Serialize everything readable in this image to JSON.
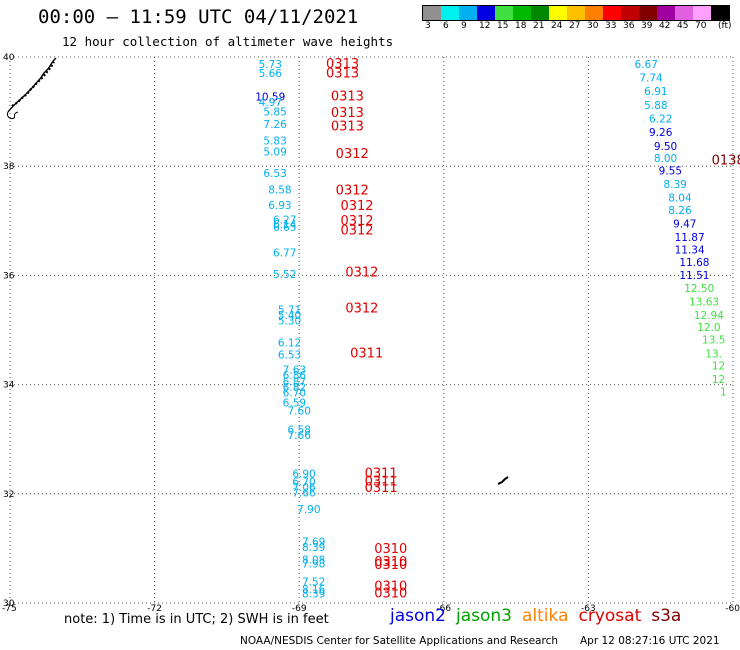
{
  "header": {
    "title": "00:00 – 11:59 UTC 04/11/2021",
    "subtitle": "12 hour collection of altimeter wave heights"
  },
  "color_scale": {
    "unit": "(ft)",
    "bins": [
      {
        "label": "3",
        "color": "#909090"
      },
      {
        "label": "6",
        "color": "#00f0f0"
      },
      {
        "label": "9",
        "color": "#00b0f0"
      },
      {
        "label": "12",
        "color": "#0000e0"
      },
      {
        "label": "15",
        "color": "#40e040"
      },
      {
        "label": "18",
        "color": "#00b800"
      },
      {
        "label": "21",
        "color": "#008800"
      },
      {
        "label": "24",
        "color": "#ffff00"
      },
      {
        "label": "27",
        "color": "#ffc000"
      },
      {
        "label": "30",
        "color": "#ff8000"
      },
      {
        "label": "33",
        "color": "#ff0000"
      },
      {
        "label": "36",
        "color": "#c00000"
      },
      {
        "label": "39",
        "color": "#800000"
      },
      {
        "label": "42",
        "color": "#a000a0"
      },
      {
        "label": "45",
        "color": "#e060e0"
      },
      {
        "label": "70",
        "color": "#ffa0ff"
      },
      {
        "label": "",
        "color": "#000000"
      }
    ]
  },
  "axes": {
    "lon": [
      {
        "value": -75,
        "label": "-75"
      },
      {
        "value": -72,
        "label": "-72"
      },
      {
        "value": -69,
        "label": "-69"
      },
      {
        "value": -66,
        "label": "-66"
      },
      {
        "value": -63,
        "label": "-63"
      },
      {
        "value": -60,
        "label": "-60"
      }
    ],
    "lat": [
      {
        "value": 40,
        "label": "40"
      },
      {
        "value": 38,
        "label": "38"
      },
      {
        "value": 36,
        "label": "36"
      },
      {
        "value": 34,
        "label": "34"
      },
      {
        "value": 32,
        "label": "32"
      },
      {
        "value": 30,
        "label": "30"
      }
    ],
    "lon_range": [
      -75,
      -60
    ],
    "lat_range": [
      30,
      40
    ],
    "grid": "dotted"
  },
  "tracks": [
    {
      "points": [
        {
          "lon": -69.6,
          "lat": 39.8,
          "v": "5.73",
          "c": "#00b0f0"
        },
        {
          "lon": -69.6,
          "lat": 39.63,
          "v": "5.66",
          "c": "#00b0f0"
        },
        {
          "lon": -69.6,
          "lat": 39.2,
          "v": "10.59",
          "c": "#0000e0"
        },
        {
          "lon": -69.6,
          "lat": 39.1,
          "v": "4.97",
          "c": "#00b0f0"
        },
        {
          "lon": -69.5,
          "lat": 38.93,
          "v": "5.85",
          "c": "#00b0f0"
        },
        {
          "lon": -69.5,
          "lat": 38.7,
          "v": "7.26",
          "c": "#00b0f0"
        },
        {
          "lon": -69.5,
          "lat": 38.4,
          "v": "5.83",
          "c": "#00b0f0"
        },
        {
          "lon": -69.5,
          "lat": 38.2,
          "v": "5.09",
          "c": "#00b0f0"
        },
        {
          "lon": -69.5,
          "lat": 37.8,
          "v": "6.53",
          "c": "#00b0f0"
        },
        {
          "lon": -69.4,
          "lat": 37.5,
          "v": "8.58",
          "c": "#00b0f0"
        },
        {
          "lon": -69.4,
          "lat": 37.22,
          "v": "6.93",
          "c": "#00b0f0"
        },
        {
          "lon": -69.3,
          "lat": 36.95,
          "v": "6.27",
          "c": "#00b0f0"
        },
        {
          "lon": -69.3,
          "lat": 36.87,
          "v": "6.14",
          "c": "#00b0f0"
        },
        {
          "lon": -69.3,
          "lat": 36.81,
          "v": "6.65",
          "c": "#00b0f0"
        },
        {
          "lon": -69.3,
          "lat": 36.35,
          "v": "6.77",
          "c": "#00b0f0"
        },
        {
          "lon": -69.3,
          "lat": 35.95,
          "v": "5.52",
          "c": "#00b0f0"
        },
        {
          "lon": -69.2,
          "lat": 35.3,
          "v": "5.71",
          "c": "#00b0f0"
        },
        {
          "lon": -69.2,
          "lat": 35.2,
          "v": "5.40",
          "c": "#00b0f0"
        },
        {
          "lon": -69.2,
          "lat": 35.1,
          "v": "5.30",
          "c": "#00b0f0"
        },
        {
          "lon": -69.2,
          "lat": 34.7,
          "v": "6.12",
          "c": "#00b0f0"
        },
        {
          "lon": -69.2,
          "lat": 34.48,
          "v": "6.53",
          "c": "#00b0f0"
        },
        {
          "lon": -69.1,
          "lat": 34.2,
          "v": "7.63",
          "c": "#00b0f0"
        },
        {
          "lon": -69.1,
          "lat": 34.1,
          "v": "6.86",
          "c": "#00b0f0"
        },
        {
          "lon": -69.1,
          "lat": 33.98,
          "v": "6.87",
          "c": "#00b0f0"
        },
        {
          "lon": -69.1,
          "lat": 33.88,
          "v": "6.82",
          "c": "#00b0f0"
        },
        {
          "lon": -69.1,
          "lat": 33.78,
          "v": "6.70",
          "c": "#00b0f0"
        },
        {
          "lon": -69.1,
          "lat": 33.6,
          "v": "6.59",
          "c": "#00b0f0"
        },
        {
          "lon": -69.0,
          "lat": 33.45,
          "v": "7.60",
          "c": "#00b0f0"
        },
        {
          "lon": -69.0,
          "lat": 33.1,
          "v": "6.58",
          "c": "#00b0f0"
        },
        {
          "lon": -69.0,
          "lat": 33.0,
          "v": "7.66",
          "c": "#00b0f0"
        },
        {
          "lon": -68.9,
          "lat": 32.3,
          "v": "6.90",
          "c": "#00b0f0"
        },
        {
          "lon": -68.9,
          "lat": 32.15,
          "v": "6.70",
          "c": "#00b0f0"
        },
        {
          "lon": -68.9,
          "lat": 32.05,
          "v": "7.06",
          "c": "#00b0f0"
        },
        {
          "lon": -68.9,
          "lat": 31.95,
          "v": "7.66",
          "c": "#00b0f0"
        },
        {
          "lon": -68.8,
          "lat": 31.65,
          "v": "7.90",
          "c": "#00b0f0"
        },
        {
          "lon": -68.7,
          "lat": 31.05,
          "v": "7.69",
          "c": "#00b0f0"
        },
        {
          "lon": -68.7,
          "lat": 30.95,
          "v": "8.39",
          "c": "#00b0f0"
        },
        {
          "lon": -68.7,
          "lat": 30.72,
          "v": "8.08",
          "c": "#00b0f0"
        },
        {
          "lon": -68.7,
          "lat": 30.65,
          "v": "7.98",
          "c": "#00b0f0"
        },
        {
          "lon": -68.7,
          "lat": 30.32,
          "v": "7.52",
          "c": "#00b0f0"
        },
        {
          "lon": -68.7,
          "lat": 30.18,
          "v": "8.16",
          "c": "#00b0f0"
        },
        {
          "lon": -68.7,
          "lat": 30.1,
          "v": "8.39",
          "c": "#00b0f0"
        }
      ]
    },
    {
      "points": [
        {
          "lon": -61.8,
          "lat": 39.8,
          "v": "6.67",
          "c": "#00b0f0"
        },
        {
          "lon": -61.7,
          "lat": 39.55,
          "v": "7.74",
          "c": "#00b0f0"
        },
        {
          "lon": -61.6,
          "lat": 39.3,
          "v": "6.91",
          "c": "#00b0f0"
        },
        {
          "lon": -61.6,
          "lat": 39.05,
          "v": "5.88",
          "c": "#00b0f0"
        },
        {
          "lon": -61.5,
          "lat": 38.8,
          "v": "6.22",
          "c": "#00b0f0"
        },
        {
          "lon": -61.5,
          "lat": 38.55,
          "v": "9.26",
          "c": "#0000e0"
        },
        {
          "lon": -61.4,
          "lat": 38.3,
          "v": "9.50",
          "c": "#0000e0"
        },
        {
          "lon": -61.4,
          "lat": 38.08,
          "v": "8.00",
          "c": "#00b0f0"
        },
        {
          "lon": -61.3,
          "lat": 37.85,
          "v": "9.55",
          "c": "#0000e0"
        },
        {
          "lon": -61.2,
          "lat": 37.6,
          "v": "8.39",
          "c": "#00b0f0"
        },
        {
          "lon": -61.1,
          "lat": 37.35,
          "v": "8.04",
          "c": "#00b0f0"
        },
        {
          "lon": -61.1,
          "lat": 37.12,
          "v": "8.26",
          "c": "#00b0f0"
        },
        {
          "lon": -61.0,
          "lat": 36.88,
          "v": "9.47",
          "c": "#0000e0"
        },
        {
          "lon": -60.9,
          "lat": 36.63,
          "v": "11.87",
          "c": "#0000e0"
        },
        {
          "lon": -60.9,
          "lat": 36.4,
          "v": "11.34",
          "c": "#0000e0"
        },
        {
          "lon": -60.8,
          "lat": 36.17,
          "v": "11.68",
          "c": "#0000e0"
        },
        {
          "lon": -60.8,
          "lat": 35.93,
          "v": "11.51",
          "c": "#0000e0"
        },
        {
          "lon": -60.7,
          "lat": 35.7,
          "v": "12.50",
          "c": "#40e040"
        },
        {
          "lon": -60.6,
          "lat": 35.45,
          "v": "13.63",
          "c": "#40e040"
        },
        {
          "lon": -60.5,
          "lat": 35.2,
          "v": "12.94",
          "c": "#40e040"
        },
        {
          "lon": -60.5,
          "lat": 34.98,
          "v": "12.0",
          "c": "#40e040"
        },
        {
          "lon": -60.4,
          "lat": 34.75,
          "v": "13.5",
          "c": "#40e040"
        },
        {
          "lon": -60.4,
          "lat": 34.5,
          "v": "13.",
          "c": "#40e040"
        },
        {
          "lon": -60.3,
          "lat": 34.28,
          "v": "12",
          "c": "#40e040"
        },
        {
          "lon": -60.3,
          "lat": 34.03,
          "v": "12",
          "c": "#40e040"
        },
        {
          "lon": -60.2,
          "lat": 33.8,
          "v": "1",
          "c": "#40e040"
        }
      ]
    }
  ],
  "pass_labels": [
    {
      "lon": -68.1,
      "lat": 39.8,
      "text": "0313",
      "c": "#e00000"
    },
    {
      "lon": -68.1,
      "lat": 39.62,
      "text": "0313",
      "c": "#e00000"
    },
    {
      "lon": -68.0,
      "lat": 39.2,
      "text": "0313",
      "c": "#e00000"
    },
    {
      "lon": -68.0,
      "lat": 38.9,
      "text": "0313",
      "c": "#e00000"
    },
    {
      "lon": -68.0,
      "lat": 38.65,
      "text": "0313",
      "c": "#e00000"
    },
    {
      "lon": -67.9,
      "lat": 38.15,
      "text": "0312",
      "c": "#e00000"
    },
    {
      "lon": -67.9,
      "lat": 37.48,
      "text": "0312",
      "c": "#e00000"
    },
    {
      "lon": -67.8,
      "lat": 37.2,
      "text": "0312",
      "c": "#e00000"
    },
    {
      "lon": -67.8,
      "lat": 36.92,
      "text": "0312",
      "c": "#e00000"
    },
    {
      "lon": -67.8,
      "lat": 36.75,
      "text": "0312",
      "c": "#e00000"
    },
    {
      "lon": -67.7,
      "lat": 35.98,
      "text": "0312",
      "c": "#e00000"
    },
    {
      "lon": -67.7,
      "lat": 35.32,
      "text": "0312",
      "c": "#e00000"
    },
    {
      "lon": -67.6,
      "lat": 34.5,
      "text": "0311",
      "c": "#e00000"
    },
    {
      "lon": -67.3,
      "lat": 32.3,
      "text": "0311",
      "c": "#e00000"
    },
    {
      "lon": -67.3,
      "lat": 32.15,
      "text": "0311",
      "c": "#e00000"
    },
    {
      "lon": -67.3,
      "lat": 32.03,
      "text": "0311",
      "c": "#e00000"
    },
    {
      "lon": -67.1,
      "lat": 30.92,
      "text": "0310",
      "c": "#e00000"
    },
    {
      "lon": -67.1,
      "lat": 30.68,
      "text": "0310",
      "c": "#e00000"
    },
    {
      "lon": -67.1,
      "lat": 30.62,
      "text": "0310",
      "c": "#e00000"
    },
    {
      "lon": -67.1,
      "lat": 30.23,
      "text": "0310",
      "c": "#e00000"
    },
    {
      "lon": -67.1,
      "lat": 30.1,
      "text": "0310",
      "c": "#e00000"
    },
    {
      "lon": -60.1,
      "lat": 38.03,
      "text": "0138",
      "c": "#800000"
    }
  ],
  "footer": {
    "note": "note: 1) Time is in UTC; 2) SWH is in feet",
    "legend": [
      {
        "label": "jason2",
        "color": "#0000e0"
      },
      {
        "label": "jason3",
        "color": "#00a000"
      },
      {
        "label": "altika",
        "color": "#ff8000"
      },
      {
        "label": "cryosat",
        "color": "#e00000"
      },
      {
        "label": "s3a",
        "color": "#800000"
      }
    ],
    "credit": "NOAA/NESDIS Center for Satellite Applications and Research",
    "timestamp": "Apr 12 08:27:16 UTC 2021"
  }
}
